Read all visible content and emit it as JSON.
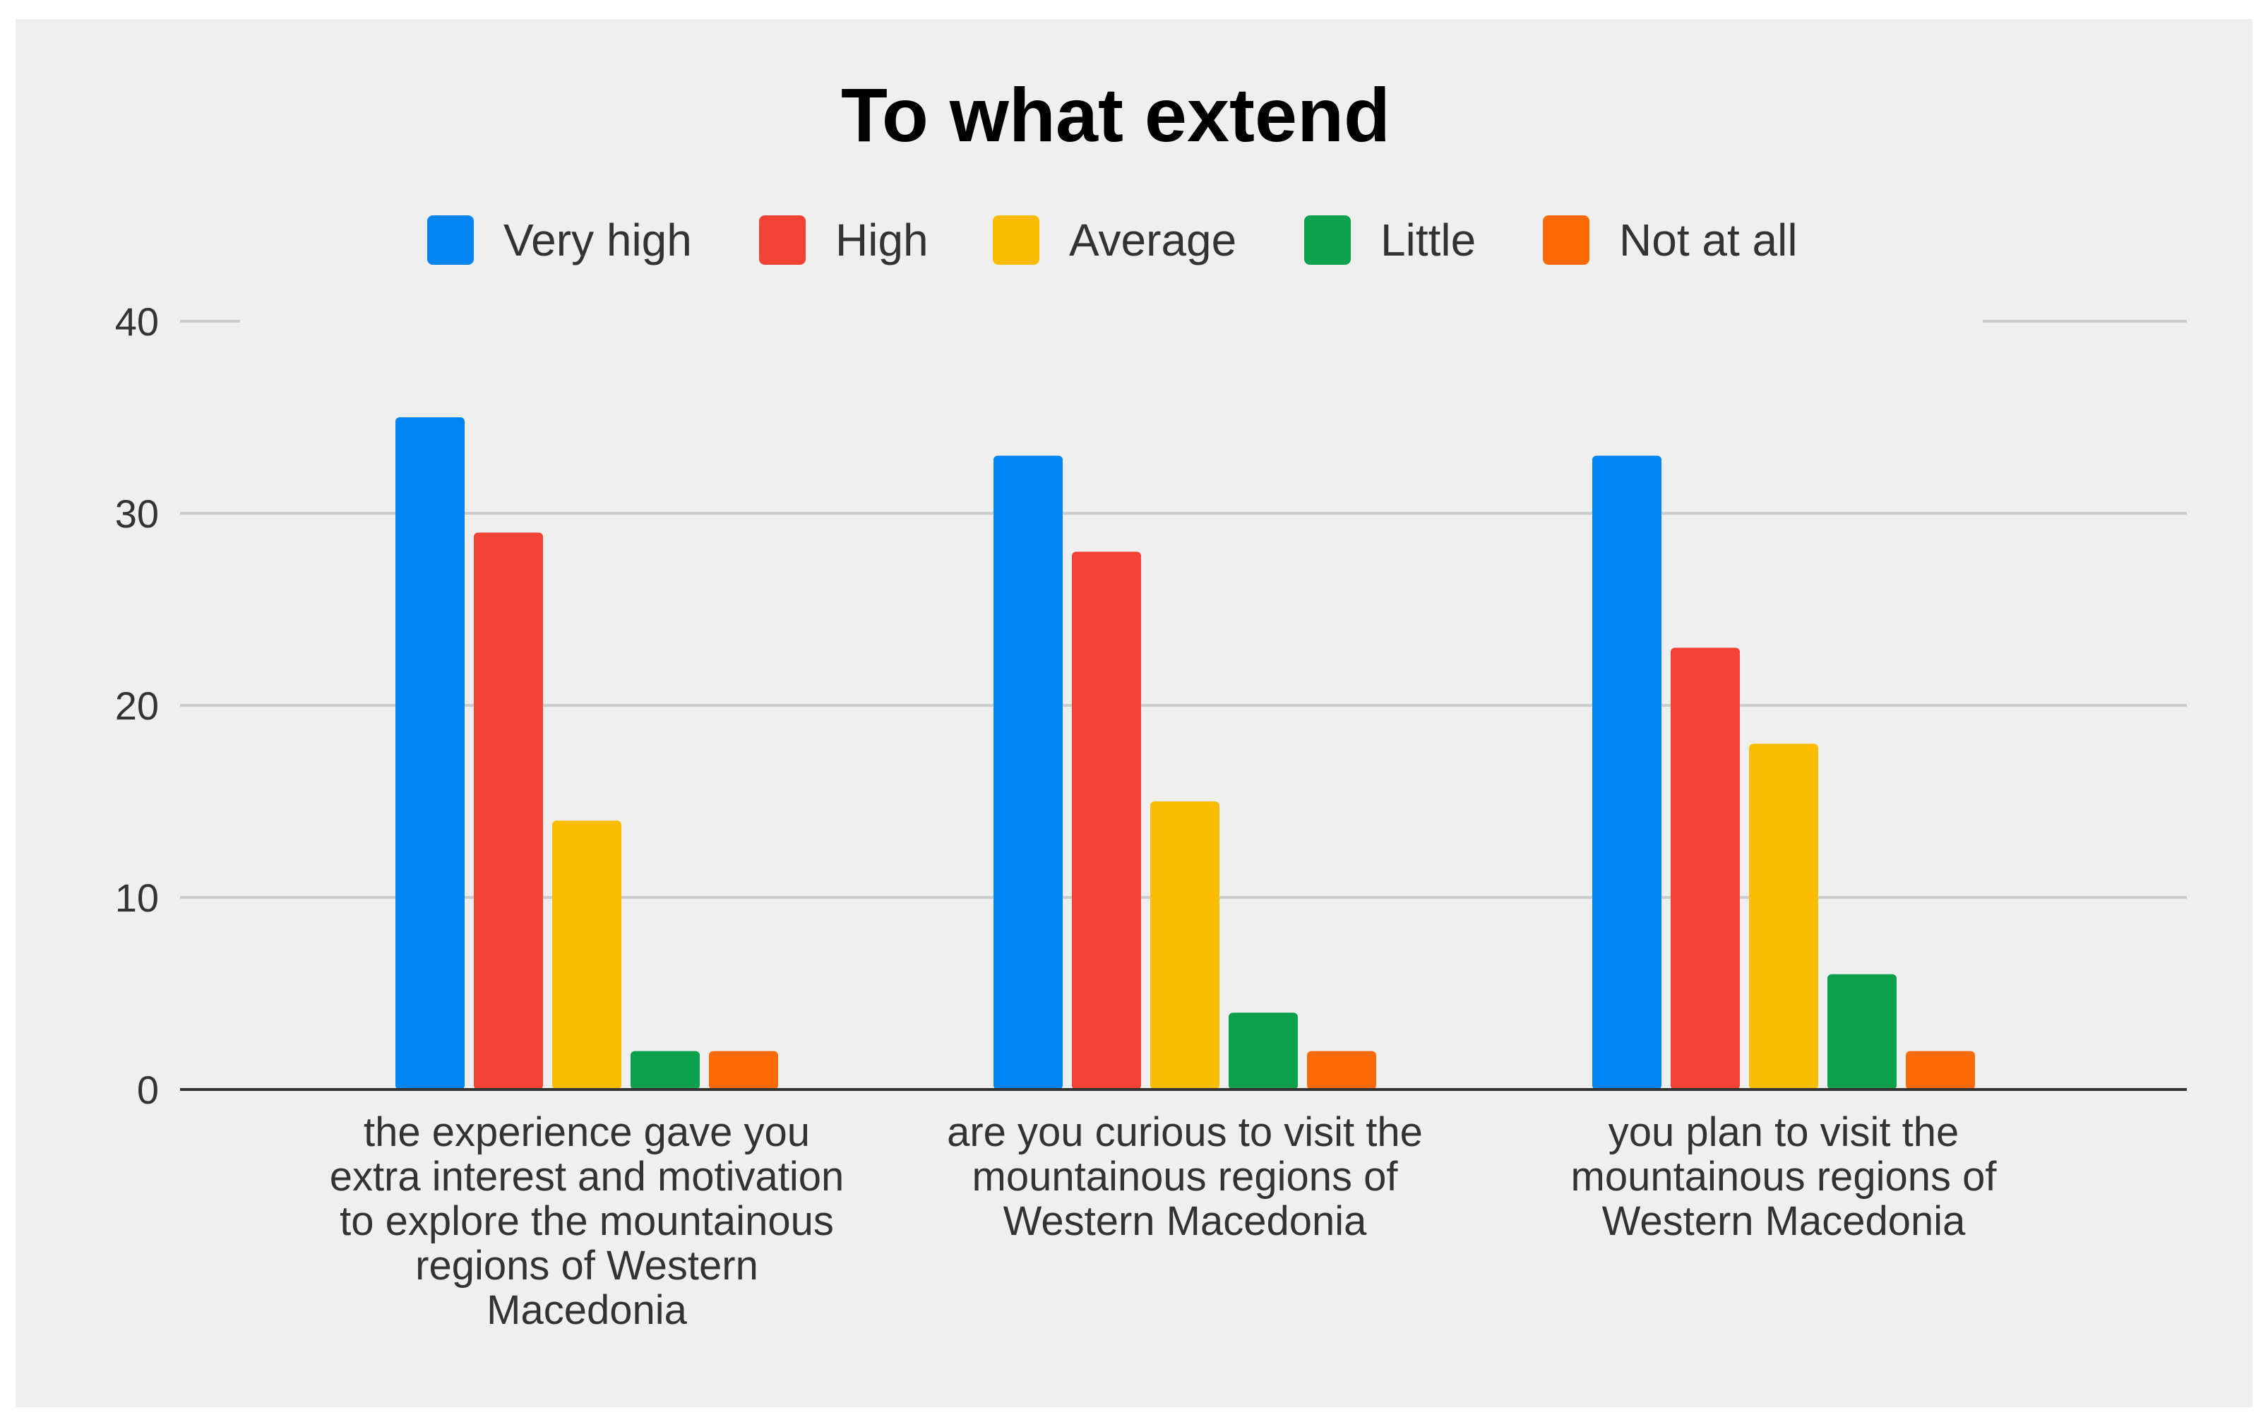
{
  "chart_data": {
    "type": "bar",
    "title": "To what extend",
    "categories": [
      [
        "the experience gave you",
        "extra interest and motivation",
        "to explore the mountainous",
        "regions of Western",
        "Macedonia"
      ],
      [
        "are you curious to visit the",
        "mountainous regions of",
        "Western Macedonia"
      ],
      [
        "you plan to visit the",
        "mountainous regions of",
        "Western Macedonia"
      ]
    ],
    "series": [
      {
        "name": "Very high",
        "color": "#0084f4",
        "values": [
          35,
          33,
          33
        ]
      },
      {
        "name": "High",
        "color": "#f44336",
        "values": [
          29,
          28,
          23
        ]
      },
      {
        "name": "Average",
        "color": "#fbbc04",
        "values": [
          14,
          15,
          18
        ]
      },
      {
        "name": "Little",
        "color": "#0aa04c",
        "values": [
          2,
          4,
          6
        ]
      },
      {
        "name": "Not at all",
        "color": "#fd6a04",
        "values": [
          2,
          2,
          2
        ]
      }
    ],
    "ylim": [
      0,
      40
    ],
    "yticks": [
      0,
      10,
      20,
      30,
      40
    ],
    "xlabel": "",
    "ylabel": "",
    "legend": "top-center",
    "grid": true
  }
}
